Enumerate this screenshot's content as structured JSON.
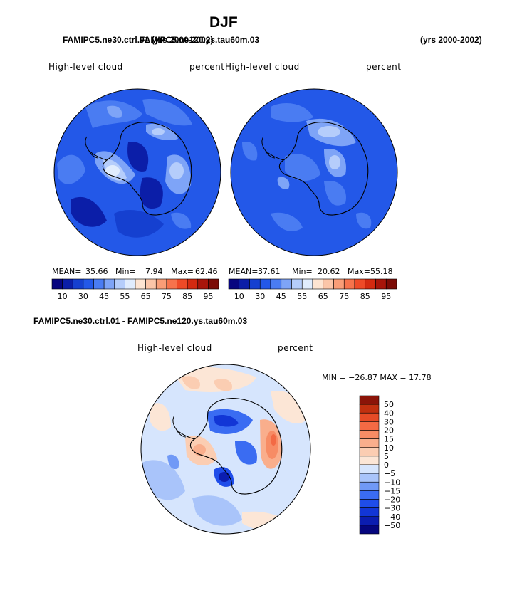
{
  "title": "DJF",
  "header": {
    "case_left_a": "FAMIPC5.ne30.ctrl.01 (yrs 2000-2002)",
    "case_left_b": "FAMIPC5.ne120.ys.tau60m.03",
    "case_right_years": "(yrs 2000-2002)",
    "diff_title": "FAMIPC5.ne30.ctrl.01 - FAMIPC5.ne120.ys.tau60m.03"
  },
  "panels": {
    "left": {
      "variable": "High-level cloud",
      "units": "percent",
      "mean_label": "MEAN=",
      "mean": "35.66",
      "min_label": "Min=",
      "min": "7.94",
      "max_label": "Max=",
      "max": "62.46"
    },
    "right": {
      "variable": "High-level cloud",
      "units": "percent",
      "mean_label": "MEAN=",
      "mean": "37.61",
      "min_label": "Min=",
      "min": "20.62",
      "max_label": "Max=",
      "max": "55.18"
    },
    "diff": {
      "variable": "High-level cloud",
      "units": "percent",
      "minmax_text": "MIN = −26.87 MAX =   17.78"
    }
  },
  "colors": {
    "abs_scale": [
      "#07057f",
      "#0b1ea8",
      "#1540d0",
      "#2358e8",
      "#4a7cf2",
      "#7ea4f7",
      "#b5cdfb",
      "#e0ecfd",
      "#fde4d2",
      "#fbc5a8",
      "#f99d77",
      "#f6734c",
      "#ee4a27",
      "#d42a10",
      "#a8150a",
      "#7c0b06"
    ],
    "diff_scale": [
      "#05067e",
      "#0b1db0",
      "#1236d6",
      "#1f4de9",
      "#3a6cf2",
      "#7099f6",
      "#a9c4fa",
      "#d6e5fd",
      "#fce6d6",
      "#fbcdb2",
      "#f9ae8c",
      "#f78c65",
      "#f36a44",
      "#e64b26",
      "#c1300f",
      "#8b1408"
    ],
    "land_outline": "#000000"
  },
  "chart_data": [
    {
      "type": "heatmap",
      "projection": "south-polar-stereographic",
      "title": "High-level cloud",
      "units": "percent",
      "stats": {
        "mean": 35.66,
        "min": 7.94,
        "max": 62.46
      },
      "colorbar_levels": [
        10,
        15,
        20,
        25,
        30,
        35,
        40,
        45,
        50,
        55,
        60,
        65,
        70,
        75,
        80,
        85,
        90,
        95
      ],
      "colorbar_tick_labels": [
        "10",
        "30",
        "45",
        "55",
        "65",
        "75",
        "85",
        "95"
      ]
    },
    {
      "type": "heatmap",
      "projection": "south-polar-stereographic",
      "title": "High-level cloud",
      "units": "percent",
      "stats": {
        "mean": 37.61,
        "min": 20.62,
        "max": 55.18
      },
      "colorbar_levels": [
        10,
        15,
        20,
        25,
        30,
        35,
        40,
        45,
        50,
        55,
        60,
        65,
        70,
        75,
        80,
        85,
        90,
        95
      ],
      "colorbar_tick_labels": [
        "10",
        "30",
        "45",
        "55",
        "65",
        "75",
        "85",
        "95"
      ]
    },
    {
      "type": "heatmap",
      "projection": "south-polar-stereographic",
      "title": "High-level cloud",
      "units": "percent",
      "stats": {
        "min": -26.87,
        "max": 17.78
      },
      "colorbar_levels": [
        -50,
        -40,
        -30,
        -20,
        -15,
        -10,
        -5,
        0,
        5,
        10,
        15,
        20,
        30,
        40,
        50
      ],
      "colorbar_tick_labels": [
        "50",
        "40",
        "30",
        "20",
        "15",
        "10",
        "5",
        "0",
        "−5",
        "−10",
        "−15",
        "−20",
        "−30",
        "−40",
        "−50"
      ]
    }
  ]
}
